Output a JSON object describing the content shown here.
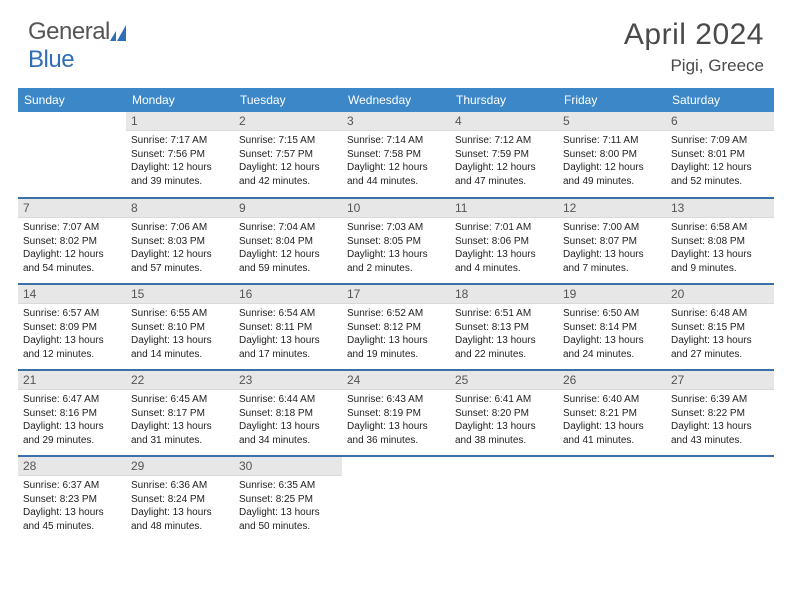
{
  "brand": {
    "general": "General",
    "blue": "Blue"
  },
  "title": "April 2024",
  "location": "Pigi, Greece",
  "colors": {
    "header_bg": "#3b87c8",
    "header_text": "#ffffff",
    "row_divider": "#3b6fa8",
    "daynum_bg": "#e7e7e7",
    "daynum_text": "#555555",
    "body_text": "#222222",
    "title_text": "#4a4a4a",
    "logo_gray": "#555555",
    "logo_blue": "#2e6fb5"
  },
  "weekdays": [
    "Sunday",
    "Monday",
    "Tuesday",
    "Wednesday",
    "Thursday",
    "Friday",
    "Saturday"
  ],
  "grid": [
    [
      {
        "n": "",
        "sr": "",
        "ss": "",
        "dl": ""
      },
      {
        "n": "1",
        "sr": "Sunrise: 7:17 AM",
        "ss": "Sunset: 7:56 PM",
        "dl": "Daylight: 12 hours and 39 minutes."
      },
      {
        "n": "2",
        "sr": "Sunrise: 7:15 AM",
        "ss": "Sunset: 7:57 PM",
        "dl": "Daylight: 12 hours and 42 minutes."
      },
      {
        "n": "3",
        "sr": "Sunrise: 7:14 AM",
        "ss": "Sunset: 7:58 PM",
        "dl": "Daylight: 12 hours and 44 minutes."
      },
      {
        "n": "4",
        "sr": "Sunrise: 7:12 AM",
        "ss": "Sunset: 7:59 PM",
        "dl": "Daylight: 12 hours and 47 minutes."
      },
      {
        "n": "5",
        "sr": "Sunrise: 7:11 AM",
        "ss": "Sunset: 8:00 PM",
        "dl": "Daylight: 12 hours and 49 minutes."
      },
      {
        "n": "6",
        "sr": "Sunrise: 7:09 AM",
        "ss": "Sunset: 8:01 PM",
        "dl": "Daylight: 12 hours and 52 minutes."
      }
    ],
    [
      {
        "n": "7",
        "sr": "Sunrise: 7:07 AM",
        "ss": "Sunset: 8:02 PM",
        "dl": "Daylight: 12 hours and 54 minutes."
      },
      {
        "n": "8",
        "sr": "Sunrise: 7:06 AM",
        "ss": "Sunset: 8:03 PM",
        "dl": "Daylight: 12 hours and 57 minutes."
      },
      {
        "n": "9",
        "sr": "Sunrise: 7:04 AM",
        "ss": "Sunset: 8:04 PM",
        "dl": "Daylight: 12 hours and 59 minutes."
      },
      {
        "n": "10",
        "sr": "Sunrise: 7:03 AM",
        "ss": "Sunset: 8:05 PM",
        "dl": "Daylight: 13 hours and 2 minutes."
      },
      {
        "n": "11",
        "sr": "Sunrise: 7:01 AM",
        "ss": "Sunset: 8:06 PM",
        "dl": "Daylight: 13 hours and 4 minutes."
      },
      {
        "n": "12",
        "sr": "Sunrise: 7:00 AM",
        "ss": "Sunset: 8:07 PM",
        "dl": "Daylight: 13 hours and 7 minutes."
      },
      {
        "n": "13",
        "sr": "Sunrise: 6:58 AM",
        "ss": "Sunset: 8:08 PM",
        "dl": "Daylight: 13 hours and 9 minutes."
      }
    ],
    [
      {
        "n": "14",
        "sr": "Sunrise: 6:57 AM",
        "ss": "Sunset: 8:09 PM",
        "dl": "Daylight: 13 hours and 12 minutes."
      },
      {
        "n": "15",
        "sr": "Sunrise: 6:55 AM",
        "ss": "Sunset: 8:10 PM",
        "dl": "Daylight: 13 hours and 14 minutes."
      },
      {
        "n": "16",
        "sr": "Sunrise: 6:54 AM",
        "ss": "Sunset: 8:11 PM",
        "dl": "Daylight: 13 hours and 17 minutes."
      },
      {
        "n": "17",
        "sr": "Sunrise: 6:52 AM",
        "ss": "Sunset: 8:12 PM",
        "dl": "Daylight: 13 hours and 19 minutes."
      },
      {
        "n": "18",
        "sr": "Sunrise: 6:51 AM",
        "ss": "Sunset: 8:13 PM",
        "dl": "Daylight: 13 hours and 22 minutes."
      },
      {
        "n": "19",
        "sr": "Sunrise: 6:50 AM",
        "ss": "Sunset: 8:14 PM",
        "dl": "Daylight: 13 hours and 24 minutes."
      },
      {
        "n": "20",
        "sr": "Sunrise: 6:48 AM",
        "ss": "Sunset: 8:15 PM",
        "dl": "Daylight: 13 hours and 27 minutes."
      }
    ],
    [
      {
        "n": "21",
        "sr": "Sunrise: 6:47 AM",
        "ss": "Sunset: 8:16 PM",
        "dl": "Daylight: 13 hours and 29 minutes."
      },
      {
        "n": "22",
        "sr": "Sunrise: 6:45 AM",
        "ss": "Sunset: 8:17 PM",
        "dl": "Daylight: 13 hours and 31 minutes."
      },
      {
        "n": "23",
        "sr": "Sunrise: 6:44 AM",
        "ss": "Sunset: 8:18 PM",
        "dl": "Daylight: 13 hours and 34 minutes."
      },
      {
        "n": "24",
        "sr": "Sunrise: 6:43 AM",
        "ss": "Sunset: 8:19 PM",
        "dl": "Daylight: 13 hours and 36 minutes."
      },
      {
        "n": "25",
        "sr": "Sunrise: 6:41 AM",
        "ss": "Sunset: 8:20 PM",
        "dl": "Daylight: 13 hours and 38 minutes."
      },
      {
        "n": "26",
        "sr": "Sunrise: 6:40 AM",
        "ss": "Sunset: 8:21 PM",
        "dl": "Daylight: 13 hours and 41 minutes."
      },
      {
        "n": "27",
        "sr": "Sunrise: 6:39 AM",
        "ss": "Sunset: 8:22 PM",
        "dl": "Daylight: 13 hours and 43 minutes."
      }
    ],
    [
      {
        "n": "28",
        "sr": "Sunrise: 6:37 AM",
        "ss": "Sunset: 8:23 PM",
        "dl": "Daylight: 13 hours and 45 minutes."
      },
      {
        "n": "29",
        "sr": "Sunrise: 6:36 AM",
        "ss": "Sunset: 8:24 PM",
        "dl": "Daylight: 13 hours and 48 minutes."
      },
      {
        "n": "30",
        "sr": "Sunrise: 6:35 AM",
        "ss": "Sunset: 8:25 PM",
        "dl": "Daylight: 13 hours and 50 minutes."
      },
      {
        "n": "",
        "sr": "",
        "ss": "",
        "dl": ""
      },
      {
        "n": "",
        "sr": "",
        "ss": "",
        "dl": ""
      },
      {
        "n": "",
        "sr": "",
        "ss": "",
        "dl": ""
      },
      {
        "n": "",
        "sr": "",
        "ss": "",
        "dl": ""
      }
    ]
  ]
}
